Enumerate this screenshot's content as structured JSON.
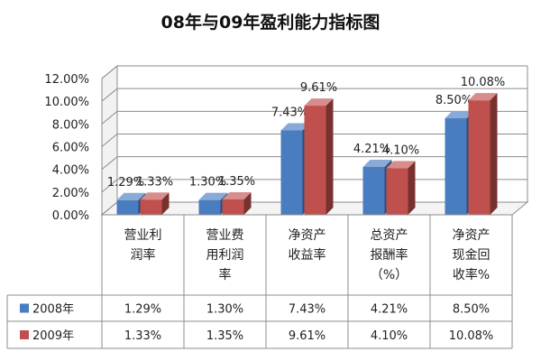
{
  "title": "08年与09年盈利能力指标图",
  "chart_data": {
    "type": "bar",
    "title": "08年与09年盈利能力指标图",
    "categories": [
      [
        "营业利",
        "润率"
      ],
      [
        "营业费",
        "用利润",
        "率"
      ],
      [
        "净资产",
        "收益率"
      ],
      [
        "总资产",
        "报酬率",
        "（%）"
      ],
      [
        "净资产",
        "现金回",
        "收率%"
      ]
    ],
    "series": [
      {
        "name": "2008年",
        "color": "#4a7cc0",
        "values": [
          1.29,
          1.3,
          7.43,
          4.21,
          8.5
        ],
        "labels": [
          "1.29%",
          "1.30%",
          "7.43%",
          "4.21%",
          "8.50%"
        ]
      },
      {
        "name": "2009年",
        "color": "#c0504d",
        "values": [
          1.33,
          1.35,
          9.61,
          4.1,
          10.08
        ],
        "labels": [
          "1.33%",
          "1.35%",
          "9.61%",
          "4.10%",
          "10.08%"
        ]
      }
    ],
    "yticks": [
      "0.00%",
      "2.00%",
      "4.00%",
      "6.00%",
      "8.00%",
      "10.00%",
      "12.00%"
    ],
    "ylim": [
      0,
      12
    ],
    "grid": true,
    "legend": "data-table"
  }
}
